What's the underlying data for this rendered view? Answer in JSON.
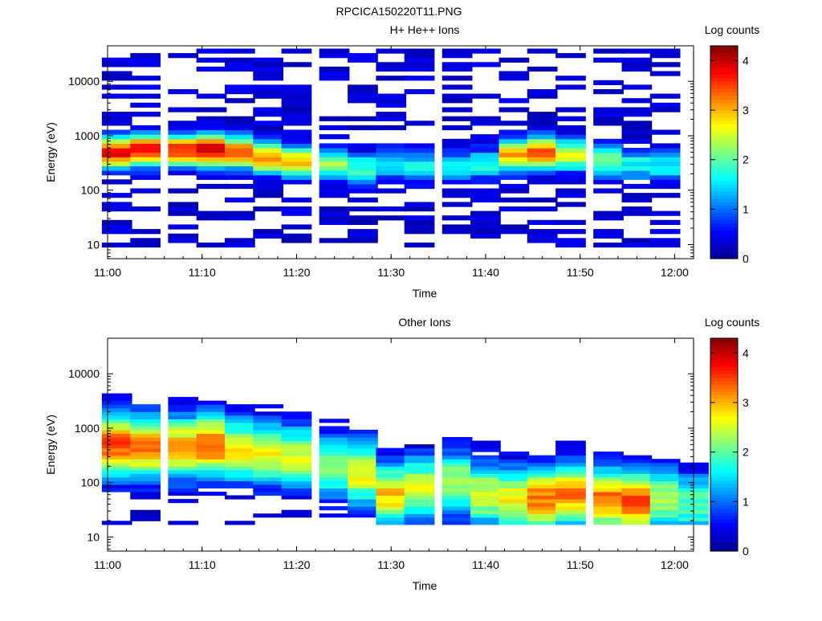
{
  "page_title": "RPCICA150220T11.PNG",
  "colormap": [
    "#00008f",
    "#0000ff",
    "#0080ff",
    "#00ffff",
    "#80ff80",
    "#ffff00",
    "#ff8000",
    "#ff0000",
    "#800000"
  ],
  "chart_data": [
    {
      "type": "heatmap",
      "title": "H+ He++ Ions",
      "xlabel": "Time",
      "ylabel": "Energy (eV)",
      "yscale": "log",
      "ylim": [
        5.5,
        45000
      ],
      "xlim": [
        "11:00",
        "12:02"
      ],
      "xticks": [
        "11:00",
        "11:10",
        "11:20",
        "11:30",
        "11:40",
        "11:50",
        "12:00"
      ],
      "yticks": [
        "10",
        "100",
        "1000",
        "10000"
      ],
      "colorbar": {
        "label": "Log counts",
        "range": [
          0,
          4.3
        ],
        "ticks": [
          "0",
          "1",
          "2",
          "3",
          "4"
        ]
      },
      "time_bins": [
        "11:01",
        "11:04",
        "11:08",
        "11:11",
        "11:14",
        "11:17",
        "11:20",
        "11:24",
        "11:27",
        "11:30",
        "11:33",
        "11:37",
        "11:40",
        "11:43",
        "11:46",
        "11:49",
        "11:53",
        "11:56",
        "11:59",
        "12:02"
      ],
      "energy_peak_by_bin": [
        500,
        550,
        550,
        550,
        500,
        400,
        350,
        300,
        260,
        300,
        280,
        260,
        300,
        450,
        500,
        450,
        350,
        300,
        280,
        0
      ],
      "peak_value_by_bin": [
        3.8,
        3.9,
        3.7,
        4.1,
        3.6,
        3.1,
        2.9,
        2.2,
        1.9,
        1.5,
        1.6,
        1.6,
        1.7,
        3.1,
        3.4,
        2.6,
        2.2,
        1.7,
        1.6,
        0
      ]
    },
    {
      "type": "heatmap",
      "title": "Other Ions",
      "xlabel": "Time",
      "ylabel": "Energy (eV)",
      "yscale": "log",
      "ylim": [
        5.5,
        45000
      ],
      "xlim": [
        "11:00",
        "12:02"
      ],
      "xticks": [
        "11:00",
        "11:10",
        "11:20",
        "11:30",
        "11:40",
        "11:50",
        "12:00"
      ],
      "yticks": [
        "10",
        "100",
        "1000",
        "10000"
      ],
      "colorbar": {
        "label": "Log counts",
        "range": [
          0,
          4.3
        ],
        "ticks": [
          "0",
          "1",
          "2",
          "3",
          "4"
        ]
      },
      "time_bins": [
        "11:01",
        "11:04",
        "11:08",
        "11:11",
        "11:14",
        "11:17",
        "11:20",
        "11:24",
        "11:27",
        "11:30",
        "11:33",
        "11:37",
        "11:40",
        "11:43",
        "11:46",
        "11:49",
        "11:53",
        "11:56",
        "11:59",
        "12:02"
      ],
      "energy_peak_by_bin": [
        500,
        450,
        450,
        500,
        400,
        350,
        300,
        200,
        150,
        60,
        80,
        100,
        60,
        50,
        50,
        60,
        50,
        45,
        50,
        40
      ],
      "peak_value_by_bin": [
        3.4,
        3.2,
        3.0,
        3.4,
        2.7,
        2.7,
        2.5,
        2.3,
        2.7,
        2.9,
        2.6,
        2.4,
        2.6,
        2.7,
        3.3,
        3.2,
        3.3,
        3.5,
        2.3,
        2.0
      ]
    }
  ]
}
